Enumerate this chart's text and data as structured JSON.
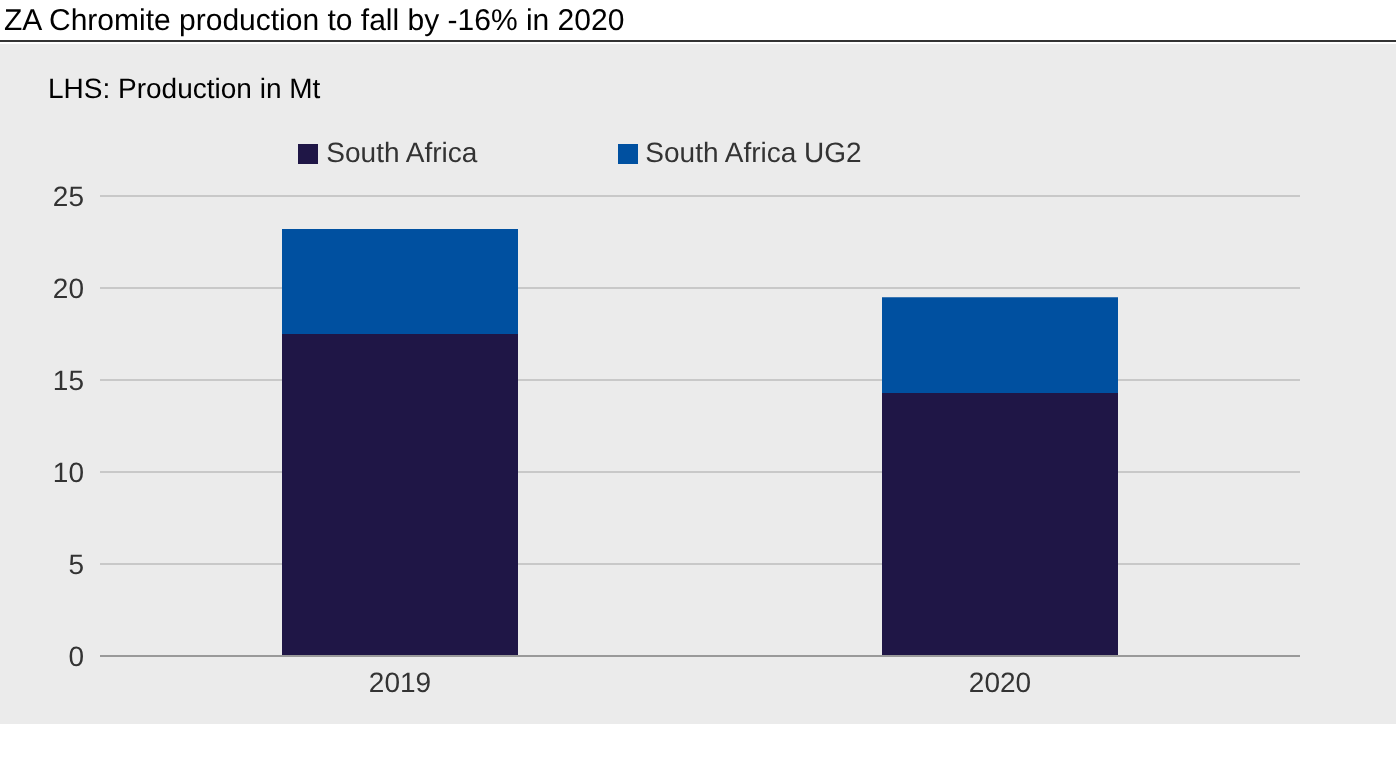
{
  "chart_data": {
    "type": "bar",
    "title": "ZA Chromite production to fall by -16% in 2020",
    "subtitle": "LHS: Production in Mt",
    "categories": [
      "2019",
      "2020"
    ],
    "stacked": true,
    "series": [
      {
        "name": "South Africa",
        "color": "#1f1646",
        "values": [
          17.5,
          14.3
        ]
      },
      {
        "name": "South Africa UG2",
        "color": "#0050a0",
        "values": [
          5.7,
          5.2
        ]
      }
    ],
    "ylim": [
      0,
      25
    ],
    "yticks": [
      0,
      5,
      10,
      15,
      20,
      25
    ],
    "grid": "y",
    "legend": "top"
  }
}
